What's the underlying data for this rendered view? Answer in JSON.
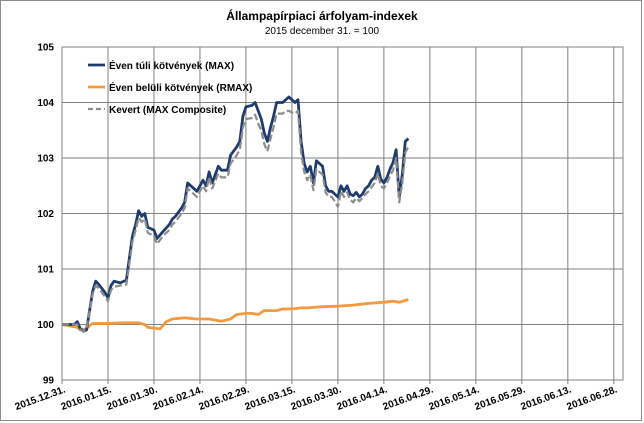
{
  "chart_data": {
    "type": "line",
    "title": "Állampapírpiaci árfolyam-indexek",
    "subtitle": "2015 december 31. = 100",
    "xlabel": "",
    "ylabel": "",
    "ylim": [
      99,
      105
    ],
    "y_ticks": [
      99,
      100,
      101,
      102,
      103,
      104,
      105
    ],
    "grid": true,
    "legend_position": "top-left",
    "x_tick_labels": [
      "2015.12.31.",
      "2016.01.15.",
      "2016.01.30.",
      "2016.02.14.",
      "2016.02.29.",
      "2016.03.15.",
      "2016.03.30.",
      "2016.04.14.",
      "2016.04.29.",
      "2016.05.14.",
      "2016.05.29.",
      "2016.06.13.",
      "2016.06.28."
    ],
    "x_tick_days": [
      0,
      15,
      30,
      45,
      60,
      75,
      90,
      105,
      120,
      135,
      150,
      165,
      180
    ],
    "x_range_days": [
      0,
      183
    ],
    "series": [
      {
        "name": "Éven túli kötvények (MAX)",
        "color": "#1f3c6e",
        "dash": "solid",
        "points": [
          [
            0,
            100.0
          ],
          [
            4,
            100.0
          ],
          [
            5,
            100.05
          ],
          [
            6,
            99.92
          ],
          [
            7,
            99.88
          ],
          [
            8,
            99.9
          ],
          [
            10,
            100.6
          ],
          [
            11,
            100.78
          ],
          [
            12,
            100.72
          ],
          [
            14,
            100.58
          ],
          [
            15,
            100.48
          ],
          [
            16,
            100.7
          ],
          [
            17,
            100.78
          ],
          [
            19,
            100.75
          ],
          [
            21,
            100.8
          ],
          [
            22,
            101.2
          ],
          [
            23,
            101.6
          ],
          [
            24,
            101.8
          ],
          [
            25,
            102.05
          ],
          [
            26,
            101.95
          ],
          [
            27,
            102.0
          ],
          [
            28,
            101.75
          ],
          [
            30,
            101.7
          ],
          [
            31,
            101.55
          ],
          [
            33,
            101.68
          ],
          [
            35,
            101.8
          ],
          [
            36,
            101.9
          ],
          [
            37,
            101.95
          ],
          [
            39,
            102.1
          ],
          [
            40,
            102.2
          ],
          [
            41,
            102.55
          ],
          [
            42,
            102.5
          ],
          [
            44,
            102.4
          ],
          [
            45,
            102.5
          ],
          [
            46,
            102.6
          ],
          [
            47,
            102.5
          ],
          [
            48,
            102.75
          ],
          [
            49,
            102.55
          ],
          [
            51,
            102.85
          ],
          [
            52,
            102.78
          ],
          [
            54,
            102.78
          ],
          [
            55,
            103.05
          ],
          [
            57,
            103.2
          ],
          [
            58,
            103.3
          ],
          [
            59,
            103.75
          ],
          [
            60,
            103.92
          ],
          [
            62,
            103.95
          ],
          [
            63,
            104.0
          ],
          [
            64,
            103.85
          ],
          [
            65,
            103.7
          ],
          [
            66,
            103.45
          ],
          [
            67,
            103.3
          ],
          [
            68,
            103.55
          ],
          [
            69,
            103.75
          ],
          [
            70,
            104.0
          ],
          [
            72,
            104.0
          ],
          [
            73,
            104.05
          ],
          [
            74,
            104.1
          ],
          [
            75,
            104.05
          ],
          [
            76,
            104.0
          ],
          [
            77,
            104.05
          ],
          [
            78,
            103.3
          ],
          [
            79,
            102.9
          ],
          [
            80,
            102.75
          ],
          [
            81,
            102.85
          ],
          [
            82,
            102.55
          ],
          [
            83,
            102.95
          ],
          [
            84,
            102.9
          ],
          [
            85,
            102.85
          ],
          [
            86,
            102.5
          ],
          [
            87,
            102.4
          ],
          [
            88,
            102.4
          ],
          [
            89,
            102.35
          ],
          [
            90,
            102.3
          ],
          [
            91,
            102.5
          ],
          [
            92,
            102.4
          ],
          [
            93,
            102.5
          ],
          [
            94,
            102.35
          ],
          [
            95,
            102.32
          ],
          [
            96,
            102.38
          ],
          [
            97,
            102.3
          ],
          [
            98,
            102.35
          ],
          [
            99,
            102.45
          ],
          [
            100,
            102.5
          ],
          [
            101,
            102.6
          ],
          [
            102,
            102.65
          ],
          [
            103,
            102.85
          ],
          [
            104,
            102.62
          ],
          [
            105,
            102.55
          ],
          [
            106,
            102.65
          ],
          [
            107,
            102.8
          ],
          [
            108,
            102.92
          ],
          [
            109,
            103.15
          ],
          [
            110,
            102.3
          ],
          [
            111,
            102.7
          ],
          [
            112,
            103.3
          ],
          [
            113,
            103.35
          ]
        ]
      },
      {
        "name": "Éven belüli kötvények (RMAX)",
        "color": "#f39a3f",
        "dash": "solid",
        "points": [
          [
            0,
            100.0
          ],
          [
            5,
            99.95
          ],
          [
            6,
            99.9
          ],
          [
            8,
            99.92
          ],
          [
            9,
            99.98
          ],
          [
            10,
            100.02
          ],
          [
            15,
            100.02
          ],
          [
            20,
            100.03
          ],
          [
            25,
            100.03
          ],
          [
            27,
            100.0
          ],
          [
            28,
            99.95
          ],
          [
            32,
            99.92
          ],
          [
            34,
            100.05
          ],
          [
            36,
            100.1
          ],
          [
            40,
            100.12
          ],
          [
            44,
            100.1
          ],
          [
            48,
            100.1
          ],
          [
            50,
            100.08
          ],
          [
            52,
            100.06
          ],
          [
            55,
            100.1
          ],
          [
            57,
            100.18
          ],
          [
            60,
            100.2
          ],
          [
            62,
            100.2
          ],
          [
            64,
            100.18
          ],
          [
            66,
            100.25
          ],
          [
            70,
            100.25
          ],
          [
            72,
            100.28
          ],
          [
            75,
            100.28
          ],
          [
            78,
            100.3
          ],
          [
            80,
            100.3
          ],
          [
            85,
            100.32
          ],
          [
            90,
            100.33
          ],
          [
            95,
            100.35
          ],
          [
            100,
            100.38
          ],
          [
            105,
            100.4
          ],
          [
            108,
            100.42
          ],
          [
            110,
            100.4
          ],
          [
            113,
            100.45
          ]
        ]
      },
      {
        "name": "Kevert (MAX Composite)",
        "color": "#8c8c8c",
        "dash": "dashed",
        "points": [
          [
            0,
            100.0
          ],
          [
            4,
            100.0
          ],
          [
            5,
            100.0
          ],
          [
            6,
            99.9
          ],
          [
            7,
            99.88
          ],
          [
            8,
            99.92
          ],
          [
            10,
            100.55
          ],
          [
            11,
            100.7
          ],
          [
            12,
            100.65
          ],
          [
            14,
            100.5
          ],
          [
            15,
            100.42
          ],
          [
            16,
            100.62
          ],
          [
            17,
            100.68
          ],
          [
            19,
            100.7
          ],
          [
            21,
            100.72
          ],
          [
            22,
            101.1
          ],
          [
            23,
            101.5
          ],
          [
            24,
            101.7
          ],
          [
            25,
            101.92
          ],
          [
            26,
            101.85
          ],
          [
            27,
            101.9
          ],
          [
            28,
            101.65
          ],
          [
            30,
            101.6
          ],
          [
            31,
            101.45
          ],
          [
            33,
            101.6
          ],
          [
            35,
            101.7
          ],
          [
            36,
            101.8
          ],
          [
            37,
            101.85
          ],
          [
            39,
            102.0
          ],
          [
            40,
            102.1
          ],
          [
            41,
            102.45
          ],
          [
            42,
            102.4
          ],
          [
            44,
            102.3
          ],
          [
            45,
            102.4
          ],
          [
            46,
            102.5
          ],
          [
            47,
            102.4
          ],
          [
            48,
            102.65
          ],
          [
            49,
            102.45
          ],
          [
            51,
            102.72
          ],
          [
            52,
            102.65
          ],
          [
            54,
            102.65
          ],
          [
            55,
            102.9
          ],
          [
            57,
            103.05
          ],
          [
            58,
            103.15
          ],
          [
            59,
            103.55
          ],
          [
            60,
            103.7
          ],
          [
            62,
            103.72
          ],
          [
            63,
            103.78
          ],
          [
            64,
            103.62
          ],
          [
            65,
            103.5
          ],
          [
            66,
            103.25
          ],
          [
            67,
            103.12
          ],
          [
            68,
            103.35
          ],
          [
            69,
            103.55
          ],
          [
            70,
            103.8
          ],
          [
            72,
            103.8
          ],
          [
            73,
            103.85
          ],
          [
            74,
            103.85
          ],
          [
            75,
            103.82
          ],
          [
            76,
            103.8
          ],
          [
            77,
            103.85
          ],
          [
            78,
            103.1
          ],
          [
            79,
            102.75
          ],
          [
            80,
            102.6
          ],
          [
            81,
            102.7
          ],
          [
            82,
            102.42
          ],
          [
            83,
            102.8
          ],
          [
            84,
            102.75
          ],
          [
            85,
            102.7
          ],
          [
            86,
            102.38
          ],
          [
            87,
            102.3
          ],
          [
            88,
            102.3
          ],
          [
            89,
            102.22
          ],
          [
            90,
            102.12
          ],
          [
            91,
            102.4
          ],
          [
            92,
            102.3
          ],
          [
            93,
            102.38
          ],
          [
            94,
            102.25
          ],
          [
            95,
            102.2
          ],
          [
            96,
            102.28
          ],
          [
            97,
            102.22
          ],
          [
            98,
            102.28
          ],
          [
            99,
            102.35
          ],
          [
            100,
            102.4
          ],
          [
            101,
            102.48
          ],
          [
            102,
            102.55
          ],
          [
            103,
            102.72
          ],
          [
            104,
            102.5
          ],
          [
            105,
            102.45
          ],
          [
            106,
            102.55
          ],
          [
            107,
            102.68
          ],
          [
            108,
            102.78
          ],
          [
            109,
            103.0
          ],
          [
            110,
            102.2
          ],
          [
            111,
            102.55
          ],
          [
            112,
            103.1
          ],
          [
            113,
            103.2
          ]
        ]
      }
    ]
  }
}
